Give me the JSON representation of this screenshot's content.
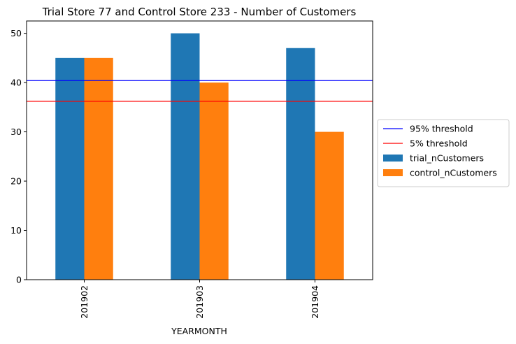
{
  "chart_data": {
    "type": "bar",
    "title": "Trial Store 77 and Control Store 233 - Number of Customers",
    "xlabel": "YEARMONTH",
    "ylabel": "",
    "categories": [
      "201902",
      "201903",
      "201904"
    ],
    "series": [
      {
        "name": "trial_nCustomers",
        "values": [
          45,
          50,
          47
        ],
        "color": "#1f77b4"
      },
      {
        "name": "control_nCustomers",
        "values": [
          45,
          40,
          30
        ],
        "color": "#ff7f0e"
      }
    ],
    "hlines": [
      {
        "name": "95% threshold",
        "value": 40.4,
        "color": "#0000ff"
      },
      {
        "name": "5% threshold",
        "value": 36.2,
        "color": "#ff0000"
      }
    ],
    "ylim": [
      0,
      52.5
    ],
    "yticks": [
      0,
      10,
      20,
      30,
      40,
      50
    ],
    "grid": false,
    "legend_position": "center-right, outside plot"
  }
}
